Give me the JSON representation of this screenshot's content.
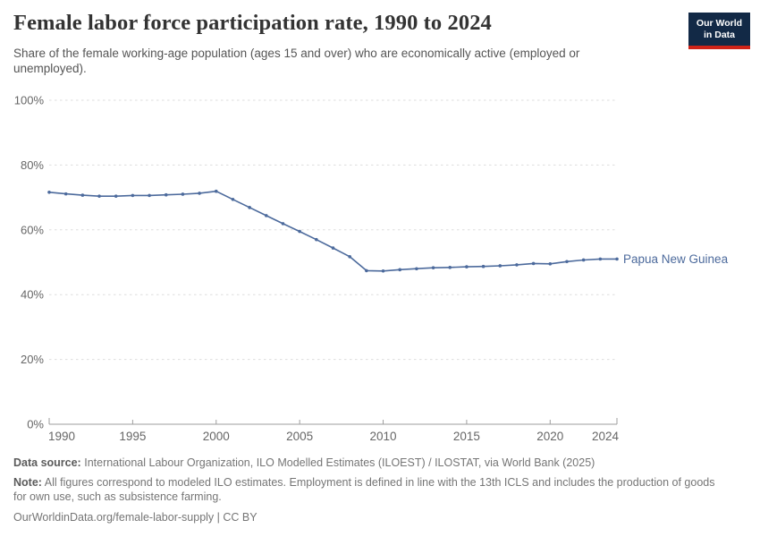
{
  "header": {
    "title": "Female labor force participation rate, 1990 to 2024",
    "subtitle": "Share of the female working-age population (ages 15 and over) who are economically active (employed or unemployed).",
    "logo": {
      "line1": "Our World",
      "line2": "in Data"
    }
  },
  "chart_data": {
    "type": "line",
    "title": "Female labor force participation rate, 1990 to 2024",
    "x": [
      1990,
      1991,
      1992,
      1993,
      1994,
      1995,
      1996,
      1997,
      1998,
      1999,
      2000,
      2001,
      2002,
      2003,
      2004,
      2005,
      2006,
      2007,
      2008,
      2009,
      2010,
      2011,
      2012,
      2013,
      2014,
      2015,
      2016,
      2017,
      2018,
      2019,
      2020,
      2021,
      2022,
      2023,
      2024
    ],
    "series": [
      {
        "name": "Papua New Guinea",
        "color": "#4C6A9C",
        "values": [
          71.6,
          71.1,
          70.7,
          70.4,
          70.4,
          70.6,
          70.6,
          70.8,
          71.0,
          71.3,
          71.9,
          69.4,
          66.9,
          64.4,
          61.9,
          59.5,
          57.0,
          54.4,
          51.7,
          47.4,
          47.3,
          47.7,
          48.0,
          48.3,
          48.4,
          48.6,
          48.7,
          48.9,
          49.2,
          49.6,
          49.5,
          50.2,
          50.7,
          51.0,
          51.0
        ]
      }
    ],
    "xlabel": "",
    "ylabel": "",
    "ylim": [
      0,
      100
    ],
    "yticks": [
      0,
      20,
      40,
      60,
      80,
      100
    ],
    "ytick_suffix": "%",
    "xticks": [
      1990,
      1995,
      2000,
      2005,
      2010,
      2015,
      2020,
      2024
    ],
    "grid": "horizontal-dashed",
    "legend_position": "end-of-line-label"
  },
  "footer": {
    "data_source_label": "Data source:",
    "data_source": "International Labour Organization, ILO Modelled Estimates (ILOEST) / ILOSTAT, via World Bank (2025)",
    "note_label": "Note:",
    "note": "All figures correspond to modeled ILO estimates. Employment is defined in line with the 13th ICLS and includes the production of goods for own use, such as subsistence farming.",
    "link": "OurWorldinData.org/female-labor-supply",
    "separator": "|",
    "license": "CC BY"
  },
  "colors": {
    "line": "#4C6A9C",
    "logo_navy": "#122946",
    "logo_red": "#cf2318",
    "gridline": "#dddddd",
    "axis": "#9e9e9e",
    "tick_text": "#666666"
  }
}
